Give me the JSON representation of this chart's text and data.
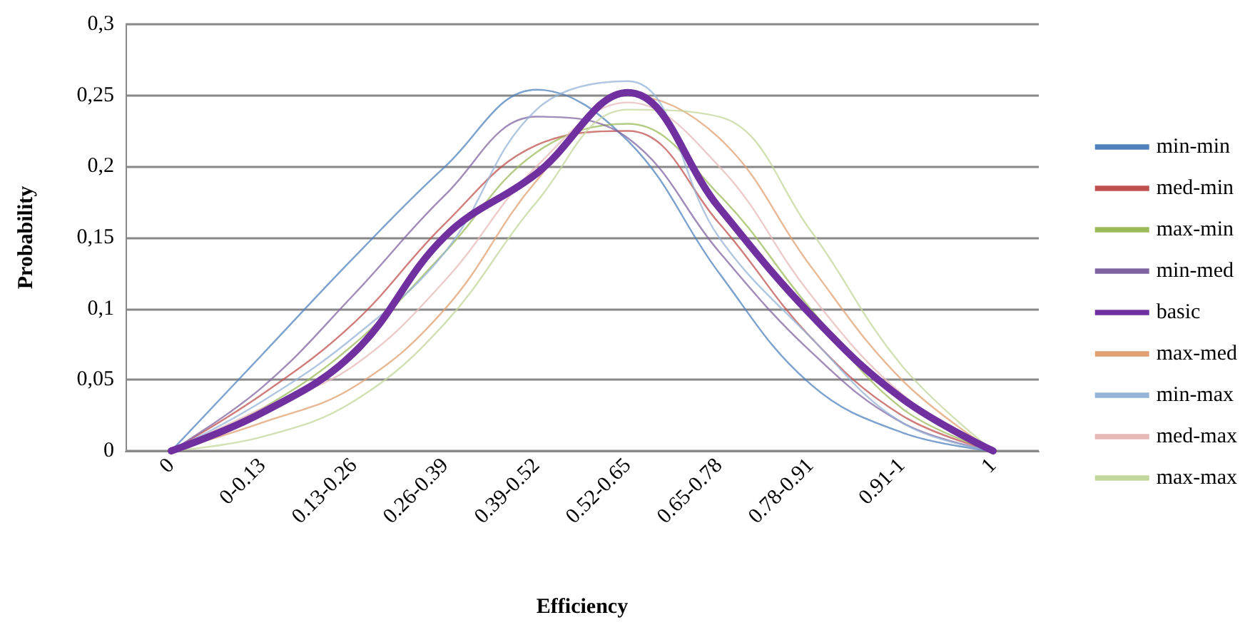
{
  "chart_data": {
    "type": "line",
    "xlabel": "Efficiency",
    "ylabel": "Probability",
    "categories": [
      "0",
      "0-0.13",
      "0.13-0.26",
      "0.26-0.39",
      "0.39-0.52",
      "0.52-0.65",
      "0.65-0.78",
      "0.78-0.91",
      "0.91-1",
      "1"
    ],
    "ylim": [
      0,
      0.3
    ],
    "yticks": [
      {
        "value": 0,
        "label": "0"
      },
      {
        "value": 0.05,
        "label": "0,05"
      },
      {
        "value": 0.1,
        "label": "0,1"
      },
      {
        "value": 0.15,
        "label": "0,15"
      },
      {
        "value": 0.2,
        "label": "0,2"
      },
      {
        "value": 0.25,
        "label": "0,25"
      },
      {
        "value": 0.3,
        "label": "0,3"
      }
    ],
    "grid": "y",
    "legend": "right",
    "marker": "none",
    "line_style": "solid",
    "series": [
      {
        "name": "min-min",
        "color": "#4f81bd",
        "values": [
          0,
          0.068,
          0.136,
          0.2,
          0.254,
          0.218,
          0.125,
          0.047,
          0.013,
          0
        ]
      },
      {
        "name": "med-min",
        "color": "#c0504d",
        "values": [
          0,
          0.04,
          0.09,
          0.16,
          0.215,
          0.225,
          0.16,
          0.08,
          0.025,
          0
        ]
      },
      {
        "name": "max-min",
        "color": "#9bbb59",
        "values": [
          0,
          0.03,
          0.075,
          0.14,
          0.21,
          0.23,
          0.18,
          0.1,
          0.03,
          0
        ]
      },
      {
        "name": "min-med",
        "color": "#8064a2",
        "values": [
          0,
          0.045,
          0.11,
          0.18,
          0.235,
          0.22,
          0.14,
          0.07,
          0.02,
          0
        ]
      },
      {
        "name": "basic",
        "color": "#7030a0",
        "values": [
          0,
          0.027,
          0.069,
          0.151,
          0.195,
          0.252,
          0.171,
          0.096,
          0.037,
          0
        ]
      },
      {
        "name": "max-med",
        "color": "#e0a070",
        "values": [
          0,
          0.02,
          0.045,
          0.1,
          0.19,
          0.25,
          0.22,
          0.13,
          0.05,
          0
        ]
      },
      {
        "name": "min-max",
        "color": "#95b3d7",
        "values": [
          0,
          0.035,
          0.08,
          0.14,
          0.24,
          0.26,
          0.15,
          0.08,
          0.02,
          0
        ]
      },
      {
        "name": "med-max",
        "color": "#e6b9b8",
        "values": [
          0,
          0.03,
          0.06,
          0.12,
          0.2,
          0.245,
          0.2,
          0.11,
          0.04,
          0
        ]
      },
      {
        "name": "max-max",
        "color": "#c3d69b",
        "values": [
          0,
          0.01,
          0.035,
          0.09,
          0.175,
          0.24,
          0.235,
          0.155,
          0.06,
          0
        ]
      }
    ]
  }
}
